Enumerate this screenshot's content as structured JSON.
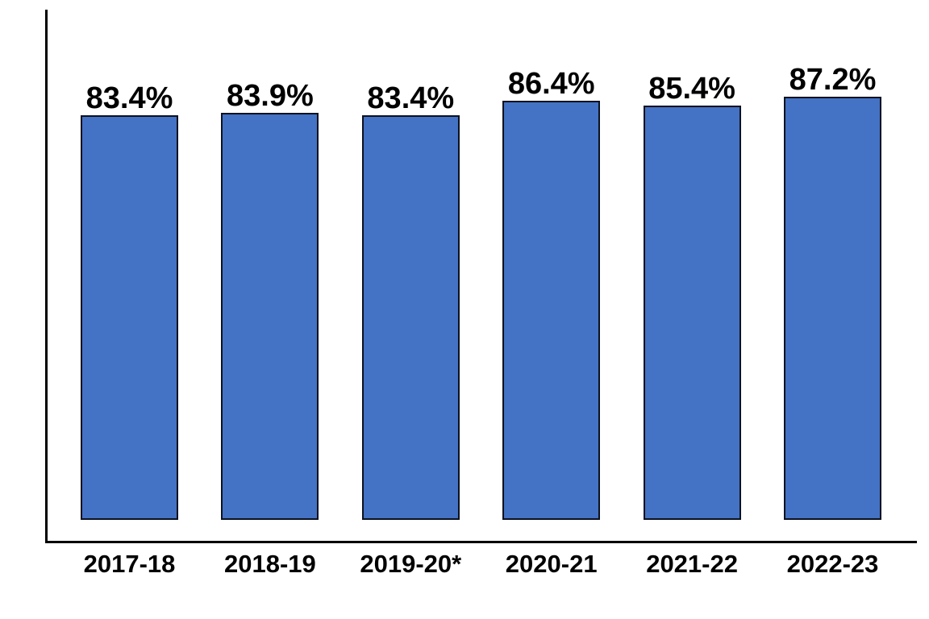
{
  "chart_data": {
    "type": "bar",
    "categories": [
      "2017-18",
      "2018-19",
      "2019-20*",
      "2020-21",
      "2021-22",
      "2022-23"
    ],
    "values": [
      83.4,
      83.9,
      83.4,
      86.4,
      85.4,
      87.2
    ],
    "data_labels": [
      "83.4%",
      "83.9%",
      "83.4%",
      "86.4%",
      "85.4%",
      "87.2%"
    ],
    "title": "",
    "xlabel": "",
    "ylabel": "",
    "ylim": [
      0,
      100
    ],
    "grid": false,
    "legend_position": "none",
    "bar_fill_color": "#4472C4",
    "bar_border_color": "#0c1220",
    "axis_color": "#000000",
    "label_color": "#000000"
  }
}
